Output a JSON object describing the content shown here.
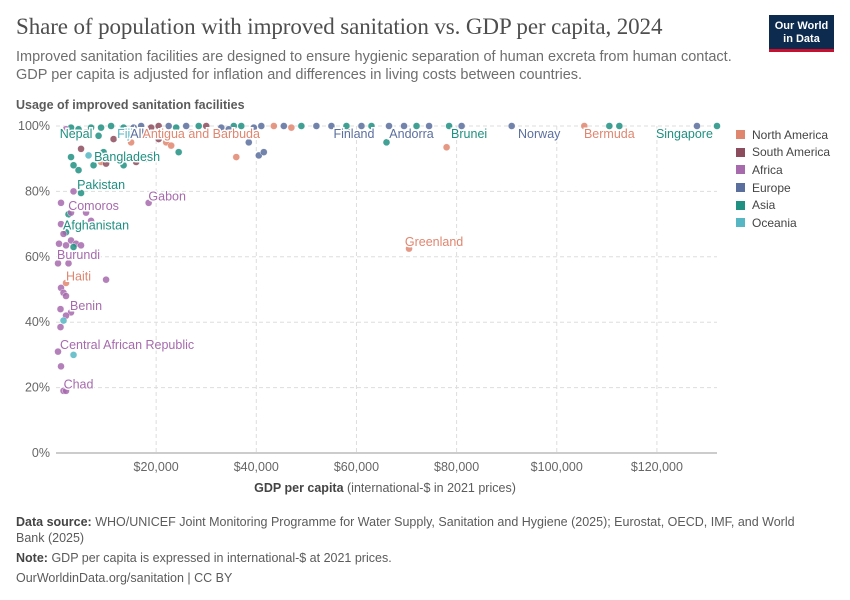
{
  "header": {
    "title": "Share of population with improved sanitation vs. GDP per capita, 2024",
    "subtitle": "Improved sanitation facilities are designed to ensure hygienic separation of human excreta from human contact. GDP per capita is adjusted for inflation and differences in living costs between countries.",
    "logo_line1": "Our World",
    "logo_line2": "in Data"
  },
  "footer": {
    "source_label": "Data source:",
    "source_text": "WHO/UNICEF Joint Monitoring Programme for Water Supply, Sanitation and Hygiene (2025); Eurostat, OECD, IMF, and World Bank (2025)",
    "note_label": "Note:",
    "note_text": "GDP per capita is expressed in international-$ at 2021 prices.",
    "link_text": "OurWorldinData.org/sanitation | CC BY"
  },
  "colors": {
    "North America": "#e0866f",
    "South America": "#8c4c5e",
    "Africa": "#a66aad",
    "Europe": "#5b6f9e",
    "Asia": "#1f9081",
    "Oceania": "#56b6c3"
  },
  "chart_data": {
    "type": "scatter",
    "ylabel": "Usage of improved sanitation facilities",
    "xlabel_bold": "GDP per capita",
    "xlabel_rest": "(international-$ in 2021 prices)",
    "xlim": [
      0,
      132000
    ],
    "ylim": [
      0,
      100
    ],
    "x_ticks": [
      20000,
      40000,
      60000,
      80000,
      100000,
      120000
    ],
    "x_tick_labels": [
      "$20,000",
      "$40,000",
      "$60,000",
      "$80,000",
      "$100,000",
      "$120,000"
    ],
    "y_ticks": [
      0,
      20,
      40,
      60,
      80,
      100
    ],
    "y_tick_labels": [
      "0%",
      "20%",
      "40%",
      "60%",
      "80%",
      "100%"
    ],
    "grid": true,
    "legend_position": "right",
    "legend": [
      "North America",
      "South America",
      "Africa",
      "Europe",
      "Asia",
      "Oceania"
    ],
    "points": [
      {
        "x": 3000,
        "y": 99.5,
        "r": "Asia"
      },
      {
        "x": 4500,
        "y": 99,
        "r": "Asia"
      },
      {
        "x": 7000,
        "y": 99.5,
        "r": "Asia"
      },
      {
        "x": 9000,
        "y": 99.5,
        "r": "Asia"
      },
      {
        "x": 11000,
        "y": 100,
        "r": "Asia"
      },
      {
        "x": 13500,
        "y": 99.5,
        "r": "Asia"
      },
      {
        "x": 15500,
        "y": 99.5,
        "r": "Europe"
      },
      {
        "x": 17000,
        "y": 100,
        "r": "Europe"
      },
      {
        "x": 19000,
        "y": 99.5,
        "r": "South America"
      },
      {
        "x": 20500,
        "y": 100,
        "r": "South America"
      },
      {
        "x": 22500,
        "y": 100,
        "r": "Europe"
      },
      {
        "x": 24000,
        "y": 99.5,
        "r": "Asia"
      },
      {
        "x": 26000,
        "y": 100,
        "r": "Europe"
      },
      {
        "x": 28500,
        "y": 100,
        "r": "Asia"
      },
      {
        "x": 30000,
        "y": 100,
        "r": "South America"
      },
      {
        "x": 33000,
        "y": 99.5,
        "r": "Europe"
      },
      {
        "x": 35500,
        "y": 100,
        "r": "Asia"
      },
      {
        "x": 37000,
        "y": 100,
        "r": "Asia"
      },
      {
        "x": 39500,
        "y": 99.5,
        "r": "Europe"
      },
      {
        "x": 41000,
        "y": 100,
        "r": "Europe"
      },
      {
        "x": 43500,
        "y": 100,
        "r": "North America"
      },
      {
        "x": 45500,
        "y": 100,
        "r": "Europe"
      },
      {
        "x": 47000,
        "y": 99.5,
        "r": "North America"
      },
      {
        "x": 49000,
        "y": 100,
        "r": "Asia"
      },
      {
        "x": 52000,
        "y": 100,
        "r": "Europe"
      },
      {
        "x": 55000,
        "y": 100,
        "r": "Europe"
      },
      {
        "x": 58000,
        "y": 100,
        "r": "Asia"
      },
      {
        "x": 61000,
        "y": 100,
        "r": "Europe"
      },
      {
        "x": 63000,
        "y": 100,
        "r": "Asia"
      },
      {
        "x": 66500,
        "y": 100,
        "r": "Europe"
      },
      {
        "x": 69500,
        "y": 100,
        "r": "Europe"
      },
      {
        "x": 72000,
        "y": 100,
        "r": "Asia"
      },
      {
        "x": 74500,
        "y": 100,
        "r": "Europe"
      },
      {
        "x": 78500,
        "y": 100,
        "r": "Asia"
      },
      {
        "x": 81000,
        "y": 100,
        "r": "Europe"
      },
      {
        "x": 91000,
        "y": 100,
        "r": "Europe"
      },
      {
        "x": 105500,
        "y": 100,
        "r": "North America"
      },
      {
        "x": 110500,
        "y": 100,
        "r": "Asia"
      },
      {
        "x": 112500,
        "y": 100,
        "r": "Asia"
      },
      {
        "x": 128000,
        "y": 100,
        "r": "Europe"
      },
      {
        "x": 132000,
        "y": 100,
        "r": "Asia"
      },
      {
        "x": 2000,
        "y": 99,
        "r": "Africa"
      },
      {
        "x": 5000,
        "y": 93,
        "r": "South America"
      },
      {
        "x": 6000,
        "y": 98,
        "r": "South America"
      },
      {
        "x": 8500,
        "y": 97,
        "r": "Asia"
      },
      {
        "x": 9500,
        "y": 92,
        "r": "Asia"
      },
      {
        "x": 11500,
        "y": 96,
        "r": "South America"
      },
      {
        "x": 14000,
        "y": 98,
        "r": "Africa"
      },
      {
        "x": 15000,
        "y": 95,
        "r": "North America"
      },
      {
        "x": 16500,
        "y": 91,
        "r": "Asia"
      },
      {
        "x": 17500,
        "y": 97,
        "r": "Oceania"
      },
      {
        "x": 19000,
        "y": 91,
        "r": "Africa"
      },
      {
        "x": 20500,
        "y": 96,
        "r": "South America"
      },
      {
        "x": 22000,
        "y": 95,
        "r": "North America"
      },
      {
        "x": 23000,
        "y": 94,
        "r": "North America"
      },
      {
        "x": 24500,
        "y": 92,
        "r": "Asia"
      },
      {
        "x": 27000,
        "y": 98,
        "r": "Europe"
      },
      {
        "x": 34500,
        "y": 99,
        "r": "Europe"
      },
      {
        "x": 36000,
        "y": 90.5,
        "r": "North America"
      },
      {
        "x": 38500,
        "y": 95,
        "r": "Europe"
      },
      {
        "x": 40500,
        "y": 91,
        "r": "Europe"
      },
      {
        "x": 41500,
        "y": 92,
        "r": "Europe"
      },
      {
        "x": 58500,
        "y": 98,
        "r": "South America"
      },
      {
        "x": 66000,
        "y": 95,
        "r": "Asia"
      },
      {
        "x": 78000,
        "y": 93.5,
        "r": "North America"
      },
      {
        "x": 3000,
        "y": 90.5,
        "r": "Asia"
      },
      {
        "x": 3500,
        "y": 88,
        "r": "Asia"
      },
      {
        "x": 4500,
        "y": 86.5,
        "r": "Asia"
      },
      {
        "x": 6500,
        "y": 91,
        "r": "Oceania"
      },
      {
        "x": 7500,
        "y": 88,
        "r": "Asia"
      },
      {
        "x": 9000,
        "y": 89,
        "r": "North America"
      },
      {
        "x": 10000,
        "y": 88.5,
        "r": "South America"
      },
      {
        "x": 12000,
        "y": 90,
        "r": "Asia"
      },
      {
        "x": 13500,
        "y": 88,
        "r": "Asia"
      },
      {
        "x": 16000,
        "y": 89,
        "r": "South America"
      },
      {
        "x": 18000,
        "y": 90,
        "r": "Asia"
      },
      {
        "x": 3500,
        "y": 80,
        "r": "Africa"
      },
      {
        "x": 5000,
        "y": 79.5,
        "r": "Asia"
      },
      {
        "x": 18500,
        "y": 76.5,
        "r": "Africa"
      },
      {
        "x": 1000,
        "y": 76.5,
        "r": "Africa"
      },
      {
        "x": 2500,
        "y": 73,
        "r": "Asia"
      },
      {
        "x": 3000,
        "y": 73.5,
        "r": "Africa"
      },
      {
        "x": 6000,
        "y": 73.5,
        "r": "Africa"
      },
      {
        "x": 7000,
        "y": 71,
        "r": "Africa"
      },
      {
        "x": 1000,
        "y": 70,
        "r": "Africa"
      },
      {
        "x": 2000,
        "y": 67.5,
        "r": "Asia"
      },
      {
        "x": 1500,
        "y": 67,
        "r": "Africa"
      },
      {
        "x": 3000,
        "y": 65,
        "r": "Africa"
      },
      {
        "x": 4000,
        "y": 64,
        "r": "Africa"
      },
      {
        "x": 5000,
        "y": 63.5,
        "r": "Africa"
      },
      {
        "x": 600,
        "y": 64,
        "r": "Africa"
      },
      {
        "x": 2000,
        "y": 63.5,
        "r": "Africa"
      },
      {
        "x": 3500,
        "y": 63,
        "r": "Asia"
      },
      {
        "x": 70500,
        "y": 62.5,
        "r": "North America"
      },
      {
        "x": 400,
        "y": 58,
        "r": "Africa"
      },
      {
        "x": 2500,
        "y": 58,
        "r": "Africa"
      },
      {
        "x": 2000,
        "y": 52,
        "r": "North America"
      },
      {
        "x": 1000,
        "y": 50.5,
        "r": "Africa"
      },
      {
        "x": 10000,
        "y": 53,
        "r": "Africa"
      },
      {
        "x": 1500,
        "y": 49,
        "r": "Africa"
      },
      {
        "x": 2000,
        "y": 48,
        "r": "Africa"
      },
      {
        "x": 900,
        "y": 44,
        "r": "Africa"
      },
      {
        "x": 3000,
        "y": 43,
        "r": "Africa"
      },
      {
        "x": 2000,
        "y": 42,
        "r": "Africa"
      },
      {
        "x": 1500,
        "y": 40.5,
        "r": "Oceania"
      },
      {
        "x": 900,
        "y": 38.5,
        "r": "Africa"
      },
      {
        "x": 400,
        "y": 31,
        "r": "Africa"
      },
      {
        "x": 3500,
        "y": 30,
        "r": "Oceania"
      },
      {
        "x": 1000,
        "y": 26.5,
        "r": "Africa"
      },
      {
        "x": 1500,
        "y": 19,
        "r": "Africa"
      },
      {
        "x": 2000,
        "y": 19,
        "r": "Africa"
      }
    ],
    "labels": [
      {
        "text": "Nepal",
        "x": 4000,
        "y": 97.5,
        "r": "Asia"
      },
      {
        "text": "Fiji",
        "x": 13800,
        "y": 97.5,
        "r": "Oceania"
      },
      {
        "text": "Albania",
        "x": 19000,
        "y": 97.5,
        "r": "Europe"
      },
      {
        "text": "Antigua and Barbuda",
        "x": 29000,
        "y": 97.5,
        "r": "North America"
      },
      {
        "text": "Finland",
        "x": 59500,
        "y": 97.5,
        "r": "Europe"
      },
      {
        "text": "Andorra",
        "x": 71000,
        "y": 97.5,
        "r": "Europe"
      },
      {
        "text": "Brunei",
        "x": 82500,
        "y": 97.5,
        "r": "Asia"
      },
      {
        "text": "Norway",
        "x": 96500,
        "y": 97.5,
        "r": "Europe"
      },
      {
        "text": "Bermuda",
        "x": 110500,
        "y": 97.5,
        "r": "North America"
      },
      {
        "text": "Singapore",
        "x": 125500,
        "y": 97.5,
        "r": "Asia"
      },
      {
        "text": "Bangladesh",
        "x": 14200,
        "y": 90.5,
        "r": "Asia"
      },
      {
        "text": "Pakistan",
        "x": 9000,
        "y": 82,
        "r": "Asia"
      },
      {
        "text": "Gabon",
        "x": 22200,
        "y": 78.5,
        "r": "Africa"
      },
      {
        "text": "Comoros",
        "x": 7500,
        "y": 75.5,
        "r": "Africa"
      },
      {
        "text": "Afghanistan",
        "x": 8000,
        "y": 69.5,
        "r": "Asia"
      },
      {
        "text": "Greenland",
        "x": 75500,
        "y": 64.5,
        "r": "North America"
      },
      {
        "text": "Burundi",
        "x": 4500,
        "y": 60.5,
        "r": "Africa"
      },
      {
        "text": "Haiti",
        "x": 4500,
        "y": 54,
        "r": "North America"
      },
      {
        "text": "Benin",
        "x": 6000,
        "y": 45,
        "r": "Africa"
      },
      {
        "text": "Central African Republic",
        "x": 14200,
        "y": 33,
        "r": "Africa"
      },
      {
        "text": "Chad",
        "x": 4500,
        "y": 21,
        "r": "Africa"
      }
    ]
  }
}
